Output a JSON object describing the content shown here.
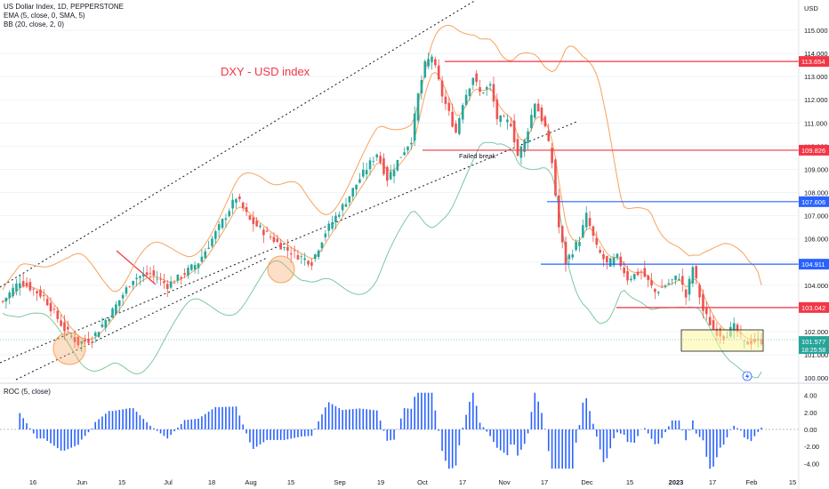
{
  "header": {
    "symbol_line": "US Dollar Index, 1D, PEPPERSTONE",
    "ema_line": "EMA (5, close, 0, SMA, 5)",
    "bb_line": "BB (20, close, 2, 0)",
    "roc_line": "ROC (5, close)",
    "currency": "USD"
  },
  "annotations": {
    "title": "DXY - USD index",
    "failed_break": "Failed break",
    "price_current": "101.577",
    "countdown": "18:25:58"
  },
  "colors": {
    "up": "#26a69a",
    "down": "#ef5350",
    "ema": "#f7a35c",
    "bb": "#7ec8a0",
    "roc": "#2962ff",
    "red_level": "#f23645",
    "blue_level": "#2962ff",
    "title": "#f23645"
  },
  "chart_data": [
    {
      "type": "candlestick",
      "title": "DXY - USD index",
      "ylim": [
        99.5,
        115.8
      ],
      "yticks": [
        "115.000",
        "114.000",
        "113.000",
        "112.000",
        "111.000",
        "110.000",
        "109.000",
        "108.000",
        "107.000",
        "106.000",
        "105.000",
        "104.000",
        "103.000",
        "102.000",
        "101.000",
        "100.000"
      ],
      "xticks": [
        "16",
        "Jun",
        "15",
        "Jul",
        "18",
        "Aug",
        "15",
        "Sep",
        "19",
        "Oct",
        "17",
        "Nov",
        "17",
        "Dec",
        "15",
        "2023",
        "17",
        "Feb",
        "15"
      ],
      "levels": [
        {
          "value": 113.654,
          "label": "113.654",
          "color": "red"
        },
        {
          "value": 109.826,
          "label": "109.826",
          "color": "red"
        },
        {
          "value": 107.606,
          "label": "107.606",
          "color": "blue"
        },
        {
          "value": 104.911,
          "label": "104.911",
          "color": "blue"
        },
        {
          "value": 103.042,
          "label": "103.042",
          "color": "red"
        }
      ],
      "close_path": [
        [
          0,
          103.3
        ],
        [
          5,
          104.2
        ],
        [
          12,
          103.5
        ],
        [
          18,
          102.1
        ],
        [
          22,
          101.5
        ],
        [
          26,
          101.7
        ],
        [
          32,
          102.9
        ],
        [
          38,
          104.3
        ],
        [
          43,
          104.5
        ],
        [
          48,
          104.0
        ],
        [
          52,
          104.4
        ],
        [
          57,
          105.0
        ],
        [
          63,
          106.5
        ],
        [
          68,
          107.8
        ],
        [
          72,
          106.8
        ],
        [
          77,
          106.2
        ],
        [
          82,
          105.6
        ],
        [
          87,
          105.2
        ],
        [
          90,
          105.0
        ],
        [
          94,
          106.3
        ],
        [
          99,
          107.4
        ],
        [
          104,
          108.6
        ],
        [
          109,
          109.7
        ],
        [
          112,
          108.6
        ],
        [
          116,
          109.6
        ],
        [
          119,
          110.3
        ],
        [
          121,
          112.2
        ],
        [
          123,
          113.5
        ],
        [
          125,
          113.9
        ],
        [
          128,
          112.2
        ],
        [
          132,
          110.6
        ],
        [
          134,
          111.9
        ],
        [
          137,
          113.0
        ],
        [
          139,
          112.3
        ],
        [
          142,
          112.6
        ],
        [
          144,
          111.2
        ],
        [
          148,
          111.0
        ],
        [
          150,
          109.6
        ],
        [
          152,
          110.2
        ],
        [
          155,
          111.9
        ],
        [
          158,
          110.8
        ],
        [
          160,
          109.3
        ],
        [
          162,
          106.5
        ],
        [
          164,
          105.0
        ],
        [
          168,
          106.0
        ],
        [
          170,
          107.0
        ],
        [
          173,
          105.6
        ],
        [
          176,
          104.9
        ],
        [
          179,
          105.2
        ],
        [
          182,
          104.3
        ],
        [
          186,
          104.6
        ],
        [
          190,
          103.7
        ],
        [
          193,
          104.0
        ],
        [
          197,
          104.4
        ],
        [
          199,
          103.5
        ],
        [
          201,
          104.8
        ],
        [
          204,
          102.9
        ],
        [
          207,
          102.1
        ],
        [
          210,
          101.8
        ],
        [
          213,
          102.2
        ],
        [
          216,
          101.5
        ],
        [
          219,
          101.6
        ],
        [
          221,
          101.6
        ]
      ]
    },
    {
      "type": "bar",
      "title": "ROC (5, close)",
      "ylim": [
        -5,
        5
      ],
      "yticks": [
        "4.00",
        "2.00",
        "0.00",
        "-2.00",
        "-4.00"
      ]
    }
  ]
}
